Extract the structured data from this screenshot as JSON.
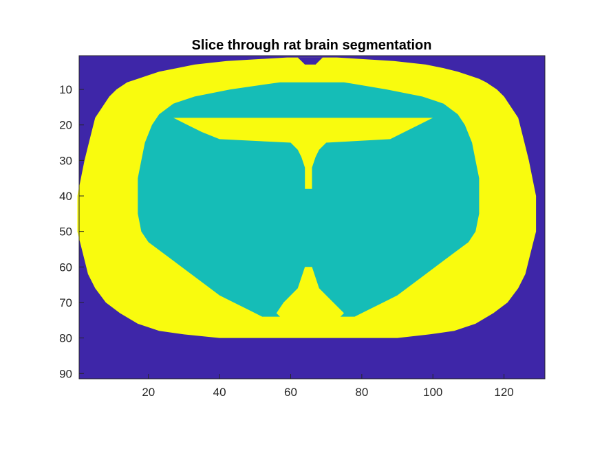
{
  "chart_data": {
    "type": "heatmap",
    "title": "Slice through rat brain segmentation",
    "xlabel": "",
    "ylabel": "",
    "x_range": [
      0.5,
      131.5
    ],
    "y_range": [
      0.5,
      91.5
    ],
    "y_reversed": true,
    "x_ticks": [
      20,
      40,
      60,
      80,
      100,
      120
    ],
    "y_ticks": [
      10,
      20,
      30,
      40,
      50,
      60,
      70,
      80,
      90
    ],
    "grid": false,
    "colormap": {
      "background": "#3e26a8",
      "white_matter_outer": "#f9fb0e",
      "inner_tissue": "#15bdb7"
    },
    "regions": {
      "outer_shell": {
        "label": "yellow",
        "rows": [
          [
            1,
            59,
            73
          ],
          [
            2,
            42,
            89
          ],
          [
            3,
            33,
            98
          ],
          [
            4,
            28,
            103
          ],
          [
            5,
            23,
            107
          ],
          [
            6,
            20,
            110
          ],
          [
            7,
            17,
            113
          ],
          [
            8,
            14,
            115
          ],
          [
            10,
            11,
            118
          ],
          [
            12,
            9,
            120
          ],
          [
            15,
            7,
            122
          ],
          [
            18,
            5,
            124
          ],
          [
            22,
            4,
            125
          ],
          [
            26,
            3,
            126
          ],
          [
            30,
            2,
            127
          ],
          [
            35,
            1,
            128
          ],
          [
            40,
            0,
            129
          ],
          [
            45,
            0,
            129
          ],
          [
            50,
            0,
            129
          ],
          [
            54,
            1,
            128
          ],
          [
            58,
            2,
            127
          ],
          [
            62,
            3,
            126
          ],
          [
            66,
            5,
            124
          ],
          [
            70,
            8,
            121
          ],
          [
            73,
            12,
            117
          ],
          [
            76,
            17,
            112
          ],
          [
            78,
            23,
            106
          ],
          [
            79,
            30,
            99
          ],
          [
            80,
            40,
            90
          ]
        ]
      },
      "inner_tissue": {
        "label": "teal",
        "rows": [
          [
            8,
            57,
            75
          ],
          [
            10,
            43,
            87
          ],
          [
            12,
            33,
            97
          ],
          [
            14,
            27,
            103
          ],
          [
            17,
            23,
            107
          ],
          [
            20,
            21,
            109
          ],
          [
            25,
            19,
            111
          ],
          [
            30,
            18,
            112
          ],
          [
            35,
            17,
            113
          ],
          [
            40,
            17,
            113
          ],
          [
            45,
            17,
            113
          ],
          [
            50,
            18,
            112
          ],
          [
            53,
            20,
            110
          ],
          [
            56,
            24,
            106
          ],
          [
            59,
            28,
            102
          ],
          [
            62,
            32,
            98
          ],
          [
            65,
            36,
            94
          ],
          [
            68,
            40,
            90
          ],
          [
            70,
            44,
            86
          ],
          [
            72,
            48,
            82
          ],
          [
            74,
            52,
            78
          ]
        ]
      }
    }
  }
}
